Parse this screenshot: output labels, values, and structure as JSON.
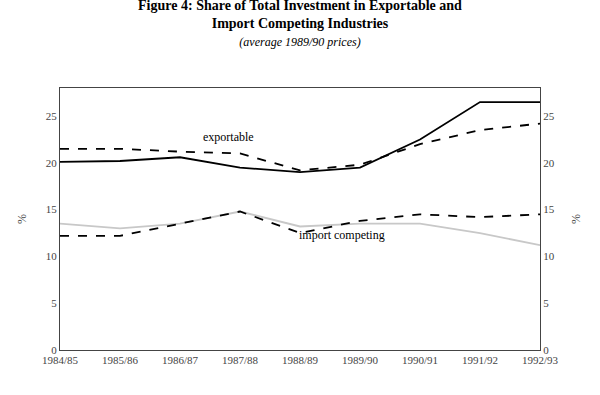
{
  "chart_data": {
    "type": "line",
    "title": [
      "Figure 4: Share of Total Investment in Exportable and",
      "Import Competing Industries"
    ],
    "subtitle": "(average 1989/90 prices)",
    "categories": [
      "1984/85",
      "1985/86",
      "1986/87",
      "1987/88",
      "1988/89",
      "1989/90",
      "1990/91",
      "1991/92",
      "1992/93"
    ],
    "series": [
      {
        "color": "#000000",
        "line_style": "solid",
        "values": [
          20.1,
          20.2,
          20.6,
          19.5,
          19.0,
          19.5,
          22.5,
          26.5,
          26.5
        ]
      },
      {
        "color": "#000000",
        "line_style": "dashed",
        "values": [
          21.5,
          21.5,
          21.2,
          21.0,
          19.2,
          19.8,
          22.0,
          23.5,
          24.2
        ]
      },
      {
        "color": "#c8c8c8",
        "line_style": "solid",
        "values": [
          13.5,
          13.0,
          13.5,
          14.8,
          13.2,
          13.5,
          13.5,
          12.5,
          11.2
        ]
      },
      {
        "color": "#000000",
        "line_style": "dashed",
        "values": [
          12.2,
          12.2,
          13.5,
          14.8,
          12.5,
          13.8,
          14.5,
          14.2,
          14.5
        ]
      }
    ],
    "ylim": [
      0,
      28
    ],
    "yticks": [
      0,
      5,
      10,
      15,
      20,
      25
    ],
    "y2lim": [
      0,
      28
    ],
    "y2ticks": [
      0,
      5,
      10,
      15,
      20,
      25
    ],
    "ylabel": "%",
    "y2label": "%",
    "annotations": [
      "exportable",
      "import competing"
    ],
    "grid": false
  }
}
